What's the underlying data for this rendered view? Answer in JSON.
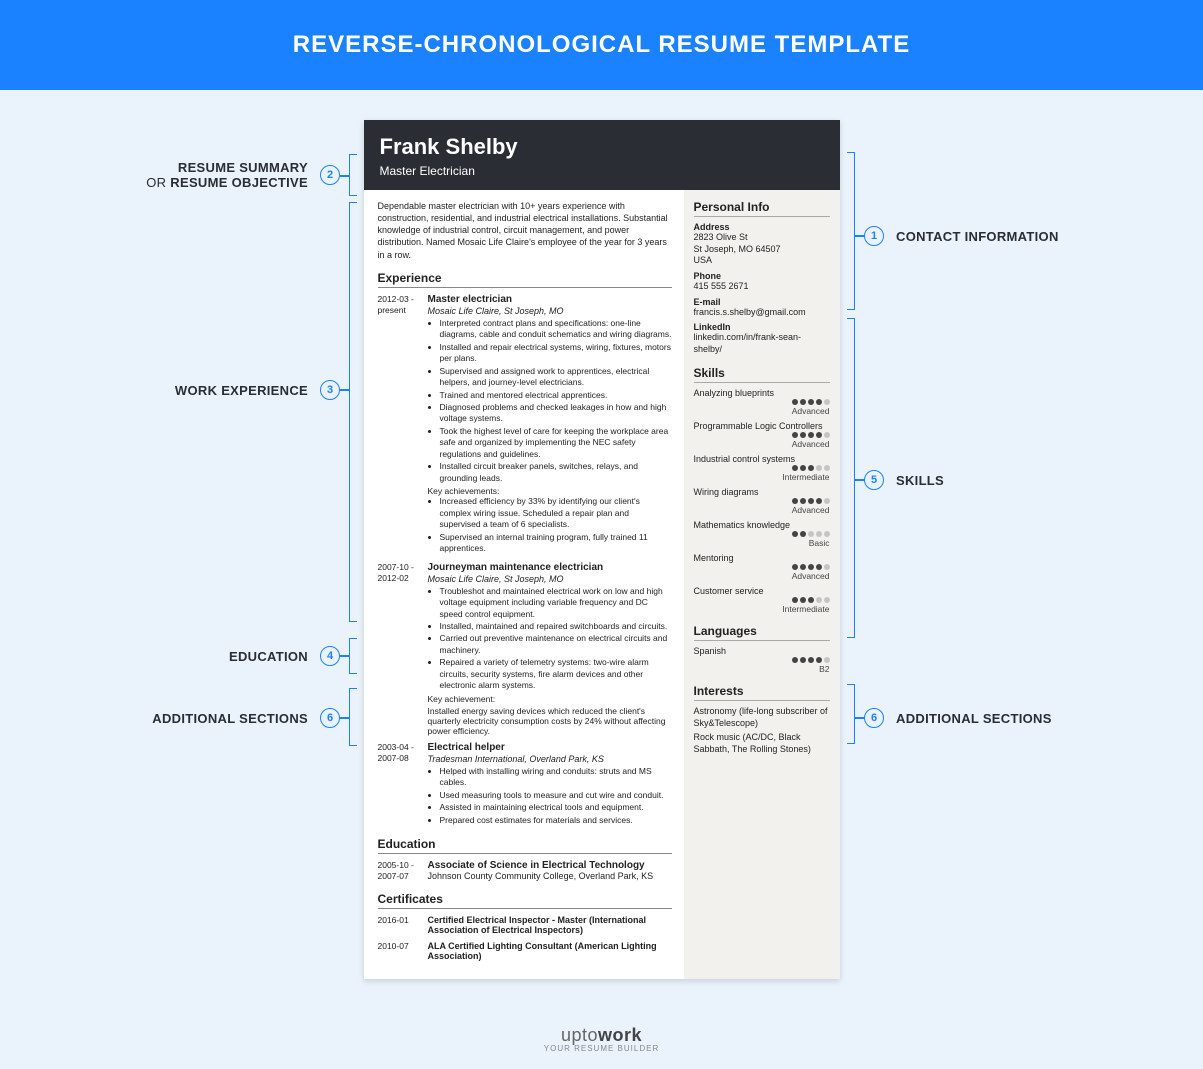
{
  "banner_title": "REVERSE-CHRONOLOGICAL RESUME TEMPLATE",
  "colors": {
    "banner": "#1a82ff",
    "page_bg": "#eaf2fc",
    "header_bg": "#2a2d33",
    "sidebar_bg": "#f3f1ee"
  },
  "callouts": {
    "summary_l1": "RESUME SUMMARY",
    "summary_l2_pre": "OR ",
    "summary_l2": "RESUME OBJECTIVE",
    "contact": "CONTACT INFORMATION",
    "work": "WORK EXPERIENCE",
    "education": "EDUCATION",
    "additional": "ADDITIONAL SECTIONS",
    "skills": "SKILLS",
    "n1": "1",
    "n2": "2",
    "n3": "3",
    "n4": "4",
    "n5": "5",
    "n6": "6"
  },
  "resume": {
    "name": "Frank Shelby",
    "title": "Master Electrician",
    "summary": "Dependable master electrician with 10+ years experience with construction, residential, and industrial electrical installations. Substantial knowledge of industrial control, circuit management, and power distribution. Named Mosaic Life Claire's employee of the year for 3 years in a row.",
    "sections": {
      "experience": "Experience",
      "education": "Education",
      "certificates": "Certificates",
      "personal_info": "Personal Info",
      "skills": "Skills",
      "languages": "Languages",
      "interests": "Interests"
    },
    "experience": [
      {
        "dates": "2012-03 - present",
        "role": "Master electrician",
        "company": "Mosaic Life Claire, St Joseph, MO",
        "bullets": [
          "Interpreted contract plans and specifications: one-line diagrams, cable and conduit schematics and wiring diagrams.",
          "Installed and repair electrical systems, wiring, fixtures, motors per plans.",
          "Supervised and assigned work to apprentices, electrical helpers, and journey-level electricians.",
          "Trained and mentored electrical apprentices.",
          "Diagnosed problems and checked leakages in how and high voltage systems.",
          "Took the highest level of care for keeping the workplace area safe and organized by implementing the NEC safety regulations and guidelines.",
          "Installed circuit breaker panels, switches, relays, and grounding leads."
        ],
        "key_label": "Key achievements:",
        "key_bullets": [
          "Increased efficiency by 33% by identifying our client's complex wiring issue. Scheduled a repair plan and supervised a team of 6 specialists.",
          "Supervised an internal training program, fully trained 11 apprentices."
        ]
      },
      {
        "dates": "2007-10 - 2012-02",
        "role": "Journeyman maintenance electrician",
        "company": "Mosaic Life Claire, St Joseph, MO",
        "bullets": [
          "Troubleshot and maintained electrical work on low and high voltage equipment including variable frequency and DC speed control equipment.",
          "Installed, maintained and repaired switchboards and circuits.",
          "Carried out preventive maintenance on electrical circuits and machinery.",
          "Repaired a variety of telemetry systems: two-wire alarm circuits, security systems, fire alarm devices and other electronic alarm systems."
        ],
        "key_label": "Key achievement:",
        "key_text": "Installed energy saving devices which reduced the client's quarterly electricity consumption costs by 24% without affecting power efficiency."
      },
      {
        "dates": "2003-04 - 2007-08",
        "role": "Electrical helper",
        "company": "Tradesman International, Overland Park, KS",
        "bullets": [
          "Helped with installing wiring and conduits: struts and MS cables.",
          "Used measuring tools to measure and cut wire and conduit.",
          "Assisted in maintaining electrical tools and equipment.",
          "Prepared cost estimates for materials and services."
        ]
      }
    ],
    "education": [
      {
        "dates": "2005-10 - 2007-07",
        "degree": "Associate of Science in Electrical Technology",
        "school": "Johnson County Community College, Overland Park, KS"
      }
    ],
    "certificates": [
      {
        "dates": "2016-01",
        "text": "Certified Electrical Inspector - Master (International Association of Electrical Inspectors)"
      },
      {
        "dates": "2010-07",
        "text": "ALA Certified Lighting Consultant (American Lighting Association)"
      }
    ],
    "personal": {
      "address_label": "Address",
      "address": [
        "2823 Olive St",
        "St Joseph, MO 64507",
        "USA"
      ],
      "phone_label": "Phone",
      "phone": "415 555 2671",
      "email_label": "E-mail",
      "email": "francis.s.shelby@gmail.com",
      "linkedin_label": "LinkedIn",
      "linkedin": "linkedin.com/in/frank-sean-shelby/"
    },
    "skills": [
      {
        "name": "Analyzing blueprints",
        "dots": 4,
        "level": "Advanced"
      },
      {
        "name": "Programmable Logic Controllers",
        "dots": 4,
        "level": "Advanced"
      },
      {
        "name": "Industrial control systems",
        "dots": 3,
        "level": "Intermediate"
      },
      {
        "name": "Wiring diagrams",
        "dots": 4,
        "level": "Advanced"
      },
      {
        "name": "Mathematics knowledge",
        "dots": 2,
        "level": "Basic"
      },
      {
        "name": "Mentoring",
        "dots": 4,
        "level": "Advanced"
      },
      {
        "name": "Customer service",
        "dots": 3,
        "level": "Intermediate"
      }
    ],
    "languages": [
      {
        "name": "Spanish",
        "dots": 4,
        "level": "B2"
      }
    ],
    "interests": [
      "Astronomy (life-long subscriber of Sky&Telescope)",
      "Rock music (AC/DC, Black Sabbath, The Rolling Stones)"
    ]
  },
  "footer": {
    "brand_pre": "upto",
    "brand_bold": "work",
    "tag": "YOUR RESUME BUILDER"
  }
}
